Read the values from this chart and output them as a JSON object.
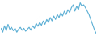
{
  "values": [
    60,
    52,
    65,
    55,
    68,
    58,
    62,
    55,
    60,
    52,
    58,
    62,
    56,
    60,
    54,
    58,
    62,
    56,
    65,
    60,
    70,
    64,
    72,
    66,
    75,
    68,
    78,
    72,
    82,
    75,
    85,
    78,
    88,
    82,
    92,
    85,
    95,
    88,
    98,
    92,
    102,
    108,
    95,
    105,
    98,
    112,
    105,
    108,
    102,
    95,
    88,
    78,
    68,
    58,
    50
  ],
  "line_color": "#5aaed4",
  "background_color": "#ffffff",
  "linewidth": 0.8
}
